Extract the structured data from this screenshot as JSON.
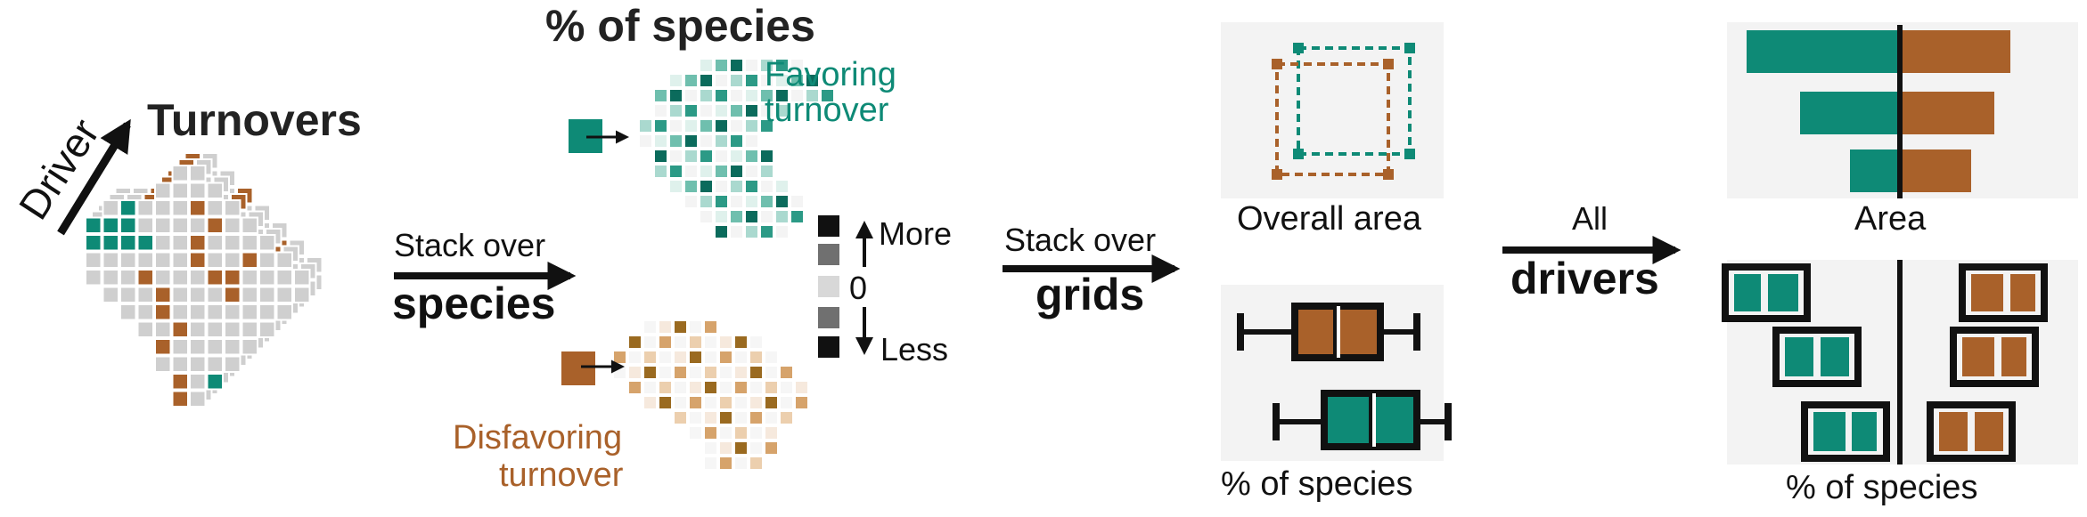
{
  "colors": {
    "teal": "#0e8a76",
    "brown": "#a9612a",
    "grid_gray": "#cfcfcf",
    "panel_bg": "#f3f3f3",
    "black": "#111111"
  },
  "panel_turnovers": {
    "axis_label": "Driver",
    "title": "Turnovers"
  },
  "arrow_stack_species": {
    "line1": "Stack over",
    "line2": "species"
  },
  "panel_species_maps": {
    "title": "% of species",
    "favoring_line1": "Favoring",
    "favoring_line2": "turnover",
    "disfavoring_line1": "Disfavoring",
    "disfavoring_line2": "turnover"
  },
  "legend_scale": {
    "more": "More",
    "zero": "0",
    "less": "Less"
  },
  "arrow_stack_grids": {
    "line1": "Stack over",
    "line2": "grids"
  },
  "panel_overall_area": {
    "caption": "Overall area"
  },
  "panel_pct_species": {
    "caption": "% of species"
  },
  "arrow_all_drivers": {
    "line1": "All",
    "line2": "drivers"
  },
  "panel_area_bars": {
    "caption": "Area"
  },
  "panel_pct_boxes": {
    "caption": "% of species"
  },
  "icons": [
    "up-arrow-icon",
    "down-arrow-icon",
    "right-arrow-icon",
    "box-plot-icon",
    "dashed-square-icon"
  ]
}
